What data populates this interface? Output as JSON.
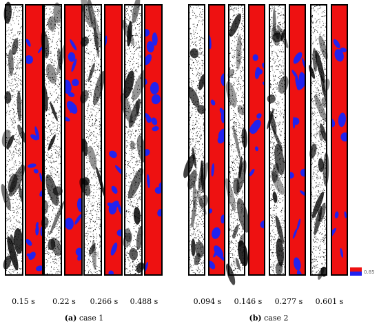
{
  "colors": {
    "fluid": "#ee1111",
    "gas": "#2222ee",
    "particle": "#000000",
    "border": "#000000"
  },
  "panels": [
    {
      "id": "a",
      "caption_letter": "(a)",
      "caption_text": " case 1",
      "times": [
        "0.15 s",
        "0.22 s",
        "0.266 s",
        "0.488 s"
      ]
    },
    {
      "id": "b",
      "caption_letter": "(b)",
      "caption_text": " case 2",
      "times": [
        "0.094 s",
        "0.146 s",
        "0.277 s",
        "0.601 s"
      ]
    }
  ],
  "legend": {
    "value": "0.85"
  }
}
